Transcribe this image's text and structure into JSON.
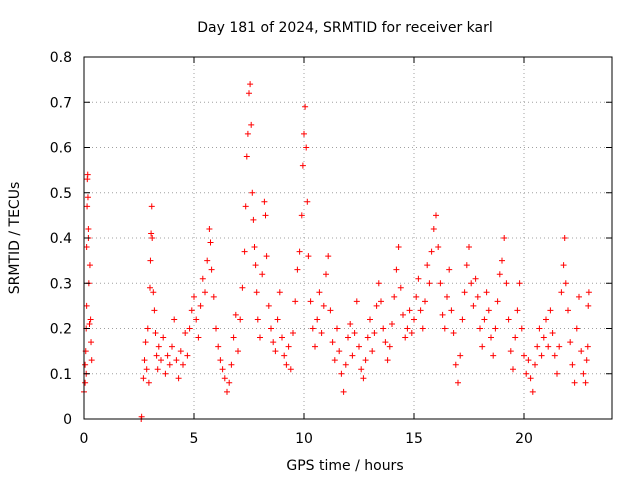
{
  "chart_data": {
    "type": "scatter",
    "title": "Day 181 of 2024, SRMTID for receiver karl",
    "xlabel": "GPS time / hours",
    "ylabel": "SRMTID / TECUs",
    "xlim": [
      0,
      24
    ],
    "ylim": [
      0,
      0.8
    ],
    "x_ticks": [
      0,
      5,
      10,
      15,
      20
    ],
    "y_ticks": [
      0,
      0.1,
      0.2,
      0.3,
      0.4,
      0.5,
      0.6,
      0.7,
      0.8
    ],
    "x_tick_labels": [
      "0",
      "5",
      "10",
      "15",
      "20"
    ],
    "y_tick_labels": [
      "0",
      "0.1",
      "0.2",
      "0.3",
      "0.4",
      "0.5",
      "0.6",
      "0.7",
      "0.8"
    ],
    "marker": "plus",
    "marker_color": "#ff0000",
    "grid": true,
    "series": [
      {
        "name": "SRMTID",
        "points": [
          [
            0.0,
            0.06
          ],
          [
            0.05,
            0.12
          ],
          [
            0.08,
            0.15
          ],
          [
            0.1,
            0.2
          ],
          [
            0.12,
            0.38
          ],
          [
            0.14,
            0.47
          ],
          [
            0.15,
            0.53
          ],
          [
            0.17,
            0.54
          ],
          [
            0.18,
            0.49
          ],
          [
            0.2,
            0.4
          ],
          [
            0.22,
            0.3
          ],
          [
            0.25,
            0.21
          ],
          [
            0.27,
            0.34
          ],
          [
            0.3,
            0.22
          ],
          [
            0.32,
            0.17
          ],
          [
            0.35,
            0.13
          ],
          [
            0.05,
            0.08
          ],
          [
            0.1,
            0.1
          ],
          [
            0.12,
            0.25
          ],
          [
            0.2,
            0.42
          ],
          [
            2.6,
            0.0
          ],
          [
            2.62,
            0.005
          ],
          [
            2.7,
            0.09
          ],
          [
            2.75,
            0.13
          ],
          [
            2.8,
            0.17
          ],
          [
            2.85,
            0.11
          ],
          [
            2.9,
            0.2
          ],
          [
            2.95,
            0.08
          ],
          [
            3.0,
            0.29
          ],
          [
            3.02,
            0.35
          ],
          [
            3.05,
            0.41
          ],
          [
            3.08,
            0.47
          ],
          [
            3.1,
            0.4
          ],
          [
            3.15,
            0.28
          ],
          [
            3.2,
            0.24
          ],
          [
            3.25,
            0.19
          ],
          [
            3.3,
            0.14
          ],
          [
            3.35,
            0.11
          ],
          [
            3.4,
            0.16
          ],
          [
            3.5,
            0.13
          ],
          [
            3.6,
            0.18
          ],
          [
            3.7,
            0.1
          ],
          [
            3.8,
            0.14
          ],
          [
            3.9,
            0.12
          ],
          [
            4.0,
            0.16
          ],
          [
            4.1,
            0.22
          ],
          [
            4.2,
            0.13
          ],
          [
            4.3,
            0.09
          ],
          [
            4.4,
            0.15
          ],
          [
            4.5,
            0.12
          ],
          [
            4.6,
            0.19
          ],
          [
            4.7,
            0.14
          ],
          [
            4.8,
            0.2
          ],
          [
            4.9,
            0.24
          ],
          [
            5.0,
            0.27
          ],
          [
            5.1,
            0.22
          ],
          [
            5.2,
            0.18
          ],
          [
            5.3,
            0.25
          ],
          [
            5.4,
            0.31
          ],
          [
            5.5,
            0.28
          ],
          [
            5.6,
            0.35
          ],
          [
            5.7,
            0.42
          ],
          [
            5.75,
            0.39
          ],
          [
            5.8,
            0.33
          ],
          [
            5.9,
            0.27
          ],
          [
            6.0,
            0.2
          ],
          [
            6.1,
            0.16
          ],
          [
            6.2,
            0.13
          ],
          [
            6.3,
            0.11
          ],
          [
            6.4,
            0.09
          ],
          [
            6.5,
            0.06
          ],
          [
            6.6,
            0.08
          ],
          [
            6.7,
            0.12
          ],
          [
            6.8,
            0.18
          ],
          [
            6.9,
            0.23
          ],
          [
            7.0,
            0.15
          ],
          [
            7.1,
            0.22
          ],
          [
            7.2,
            0.29
          ],
          [
            7.3,
            0.37
          ],
          [
            7.35,
            0.47
          ],
          [
            7.4,
            0.58
          ],
          [
            7.45,
            0.63
          ],
          [
            7.5,
            0.72
          ],
          [
            7.55,
            0.74
          ],
          [
            7.6,
            0.65
          ],
          [
            7.65,
            0.5
          ],
          [
            7.7,
            0.44
          ],
          [
            7.75,
            0.38
          ],
          [
            7.8,
            0.34
          ],
          [
            7.85,
            0.28
          ],
          [
            7.9,
            0.22
          ],
          [
            8.0,
            0.18
          ],
          [
            8.1,
            0.32
          ],
          [
            8.2,
            0.48
          ],
          [
            8.25,
            0.45
          ],
          [
            8.3,
            0.36
          ],
          [
            8.4,
            0.25
          ],
          [
            8.5,
            0.2
          ],
          [
            8.6,
            0.17
          ],
          [
            8.7,
            0.15
          ],
          [
            8.8,
            0.22
          ],
          [
            8.9,
            0.28
          ],
          [
            9.0,
            0.18
          ],
          [
            9.1,
            0.14
          ],
          [
            9.2,
            0.12
          ],
          [
            9.3,
            0.16
          ],
          [
            9.4,
            0.11
          ],
          [
            9.5,
            0.19
          ],
          [
            9.6,
            0.26
          ],
          [
            9.7,
            0.33
          ],
          [
            9.8,
            0.37
          ],
          [
            9.9,
            0.45
          ],
          [
            9.95,
            0.56
          ],
          [
            10.0,
            0.63
          ],
          [
            10.05,
            0.69
          ],
          [
            10.1,
            0.6
          ],
          [
            10.15,
            0.48
          ],
          [
            10.2,
            0.36
          ],
          [
            10.3,
            0.26
          ],
          [
            10.4,
            0.2
          ],
          [
            10.5,
            0.16
          ],
          [
            10.6,
            0.22
          ],
          [
            10.7,
            0.28
          ],
          [
            10.8,
            0.19
          ],
          [
            10.9,
            0.25
          ],
          [
            11.0,
            0.32
          ],
          [
            11.1,
            0.36
          ],
          [
            11.2,
            0.24
          ],
          [
            11.3,
            0.17
          ],
          [
            11.4,
            0.13
          ],
          [
            11.5,
            0.2
          ],
          [
            11.6,
            0.15
          ],
          [
            11.7,
            0.1
          ],
          [
            11.8,
            0.06
          ],
          [
            11.9,
            0.12
          ],
          [
            12.0,
            0.18
          ],
          [
            12.1,
            0.21
          ],
          [
            12.2,
            0.14
          ],
          [
            12.3,
            0.19
          ],
          [
            12.4,
            0.26
          ],
          [
            12.5,
            0.16
          ],
          [
            12.6,
            0.11
          ],
          [
            12.7,
            0.09
          ],
          [
            12.8,
            0.13
          ],
          [
            12.9,
            0.18
          ],
          [
            13.0,
            0.22
          ],
          [
            13.1,
            0.15
          ],
          [
            13.2,
            0.19
          ],
          [
            13.3,
            0.25
          ],
          [
            13.4,
            0.3
          ],
          [
            13.5,
            0.26
          ],
          [
            13.6,
            0.2
          ],
          [
            13.7,
            0.17
          ],
          [
            13.8,
            0.13
          ],
          [
            13.9,
            0.16
          ],
          [
            14.0,
            0.21
          ],
          [
            14.1,
            0.27
          ],
          [
            14.2,
            0.33
          ],
          [
            14.3,
            0.38
          ],
          [
            14.4,
            0.29
          ],
          [
            14.5,
            0.23
          ],
          [
            14.6,
            0.18
          ],
          [
            14.7,
            0.2
          ],
          [
            14.8,
            0.24
          ],
          [
            14.9,
            0.19
          ],
          [
            15.0,
            0.22
          ],
          [
            15.1,
            0.27
          ],
          [
            15.2,
            0.31
          ],
          [
            15.3,
            0.24
          ],
          [
            15.4,
            0.2
          ],
          [
            15.5,
            0.26
          ],
          [
            15.6,
            0.34
          ],
          [
            15.7,
            0.3
          ],
          [
            15.8,
            0.37
          ],
          [
            15.9,
            0.42
          ],
          [
            16.0,
            0.45
          ],
          [
            16.1,
            0.38
          ],
          [
            16.2,
            0.3
          ],
          [
            16.3,
            0.23
          ],
          [
            16.4,
            0.2
          ],
          [
            16.5,
            0.27
          ],
          [
            16.6,
            0.33
          ],
          [
            16.7,
            0.24
          ],
          [
            16.8,
            0.19
          ],
          [
            16.9,
            0.12
          ],
          [
            17.0,
            0.08
          ],
          [
            17.1,
            0.14
          ],
          [
            17.2,
            0.22
          ],
          [
            17.3,
            0.28
          ],
          [
            17.4,
            0.34
          ],
          [
            17.5,
            0.38
          ],
          [
            17.6,
            0.3
          ],
          [
            17.7,
            0.25
          ],
          [
            17.8,
            0.31
          ],
          [
            17.9,
            0.27
          ],
          [
            18.0,
            0.2
          ],
          [
            18.1,
            0.16
          ],
          [
            18.2,
            0.22
          ],
          [
            18.3,
            0.28
          ],
          [
            18.4,
            0.24
          ],
          [
            18.5,
            0.18
          ],
          [
            18.6,
            0.14
          ],
          [
            18.7,
            0.2
          ],
          [
            18.8,
            0.26
          ],
          [
            18.9,
            0.32
          ],
          [
            19.0,
            0.35
          ],
          [
            19.1,
            0.4
          ],
          [
            19.2,
            0.3
          ],
          [
            19.3,
            0.22
          ],
          [
            19.4,
            0.15
          ],
          [
            19.5,
            0.11
          ],
          [
            19.6,
            0.18
          ],
          [
            19.7,
            0.24
          ],
          [
            19.8,
            0.3
          ],
          [
            19.9,
            0.2
          ],
          [
            20.0,
            0.14
          ],
          [
            20.1,
            0.1
          ],
          [
            20.2,
            0.13
          ],
          [
            20.3,
            0.09
          ],
          [
            20.4,
            0.06
          ],
          [
            20.5,
            0.12
          ],
          [
            20.6,
            0.16
          ],
          [
            20.7,
            0.2
          ],
          [
            20.8,
            0.14
          ],
          [
            20.9,
            0.18
          ],
          [
            21.0,
            0.22
          ],
          [
            21.1,
            0.16
          ],
          [
            21.2,
            0.24
          ],
          [
            21.3,
            0.19
          ],
          [
            21.4,
            0.14
          ],
          [
            21.5,
            0.1
          ],
          [
            21.6,
            0.16
          ],
          [
            21.7,
            0.28
          ],
          [
            21.8,
            0.34
          ],
          [
            21.85,
            0.4
          ],
          [
            21.9,
            0.3
          ],
          [
            22.0,
            0.24
          ],
          [
            22.1,
            0.17
          ],
          [
            22.2,
            0.12
          ],
          [
            22.3,
            0.08
          ],
          [
            22.4,
            0.2
          ],
          [
            22.5,
            0.27
          ],
          [
            22.6,
            0.15
          ],
          [
            22.7,
            0.1
          ],
          [
            22.8,
            0.08
          ],
          [
            22.85,
            0.13
          ],
          [
            22.9,
            0.16
          ],
          [
            22.92,
            0.25
          ],
          [
            22.95,
            0.28
          ]
        ]
      }
    ]
  }
}
